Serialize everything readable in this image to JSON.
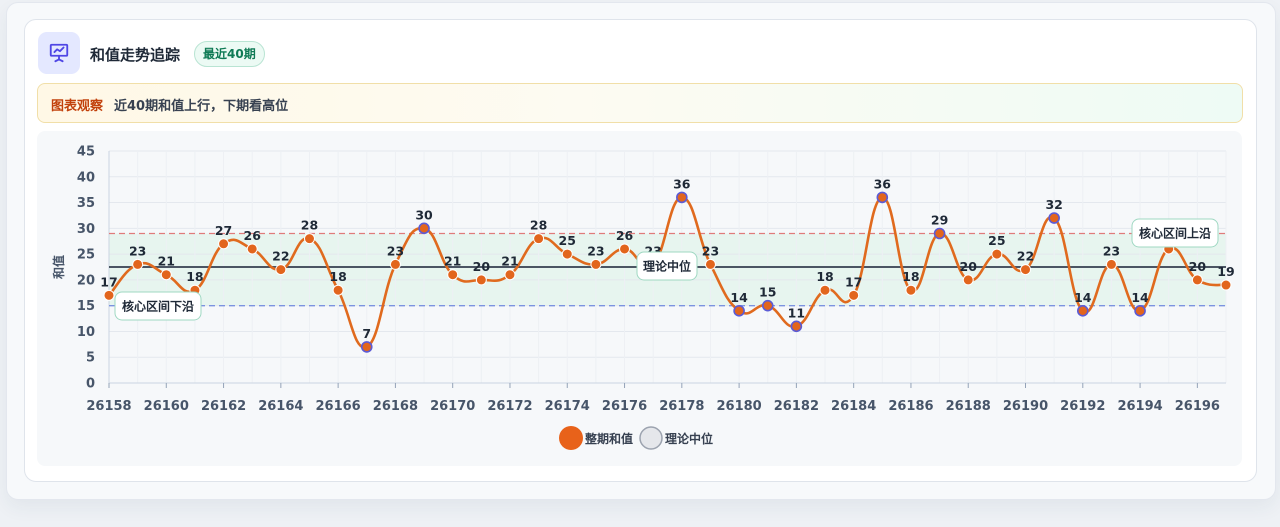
{
  "header": {
    "title": "和值走势追踪",
    "badge": "最近40期",
    "icon": "chart-presentation-icon"
  },
  "observation": {
    "label": "图表观察",
    "text": "近40期和值上行，下期看高位"
  },
  "colors": {
    "line": "#e06a1e",
    "point": "#e2651d",
    "accent": "#5b5bd6",
    "median": "#4b5563",
    "upper": "#e07b7b",
    "lower": "#7b93e0",
    "band": "#e3f4ec"
  },
  "chart_data": {
    "type": "line",
    "ylabel": "和值",
    "ylim": [
      0,
      45
    ],
    "yticks": [
      0,
      5,
      10,
      15,
      20,
      25,
      30,
      35,
      40,
      45
    ],
    "grid": true,
    "x": [
      26158,
      26159,
      26160,
      26161,
      26162,
      26163,
      26164,
      26165,
      26166,
      26167,
      26168,
      26169,
      26170,
      26171,
      26172,
      26173,
      26174,
      26175,
      26176,
      26177,
      26178,
      26179,
      26180,
      26181,
      26182,
      26183,
      26184,
      26185,
      26186,
      26187,
      26188,
      26189,
      26190,
      26191,
      26192,
      26193,
      26194,
      26195,
      26196,
      26197
    ],
    "xticks": [
      26158,
      26160,
      26162,
      26164,
      26166,
      26168,
      26170,
      26172,
      26174,
      26176,
      26178,
      26180,
      26182,
      26184,
      26186,
      26188,
      26190,
      26192,
      26194,
      26196
    ],
    "series": [
      {
        "name": "整期和值",
        "values": [
          17,
          23,
          21,
          18,
          27,
          26,
          22,
          28,
          18,
          7,
          23,
          30,
          21,
          20,
          21,
          28,
          25,
          23,
          26,
          23,
          36,
          23,
          14,
          15,
          11,
          18,
          17,
          36,
          18,
          29,
          20,
          25,
          22,
          32,
          14,
          23,
          14,
          26,
          20,
          19
        ]
      }
    ],
    "reference_lines": [
      {
        "name": "理论中位",
        "value": 22.5,
        "label": "理论中位"
      },
      {
        "name": "核心区间上沿",
        "value": 29,
        "label": "核心区间上沿"
      },
      {
        "name": "核心区间下沿",
        "value": 15,
        "label": "核心区间下沿"
      }
    ],
    "legend": {
      "position": "bottom",
      "items": [
        "整期和值",
        "理论中位"
      ]
    }
  }
}
